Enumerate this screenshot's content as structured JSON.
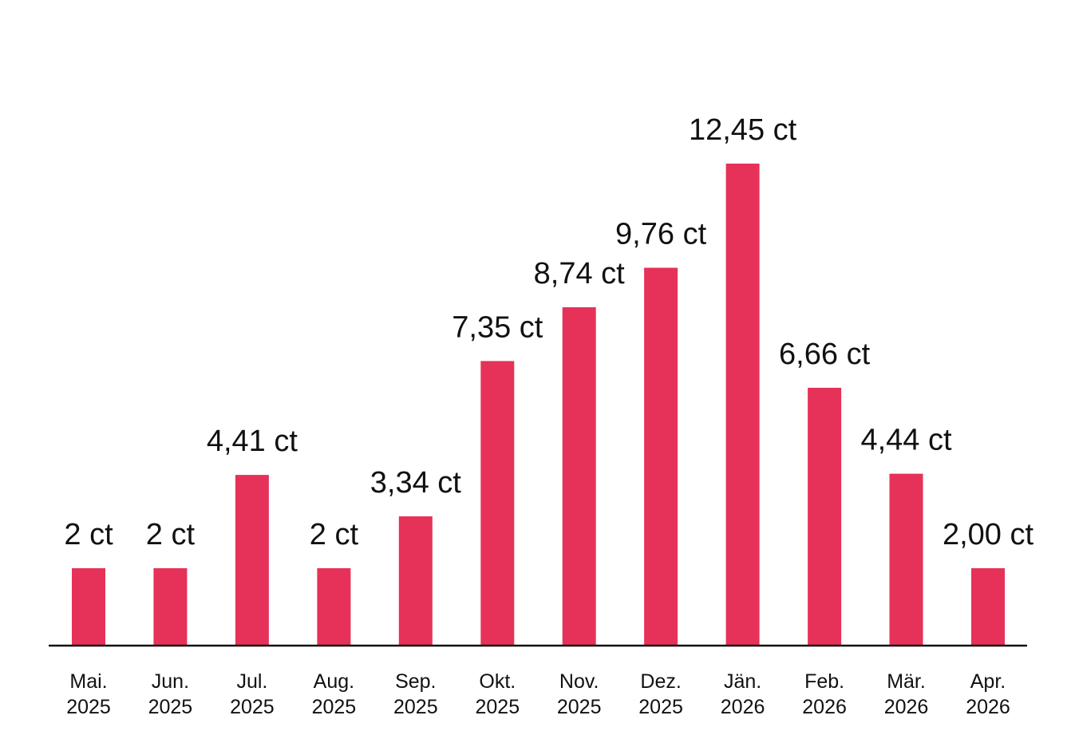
{
  "colors": {
    "bar": "#e63258",
    "axis": "#111111",
    "text": "#111111"
  },
  "chart_data": {
    "type": "bar",
    "categories": [
      [
        "Mai.",
        "2025"
      ],
      [
        "Jun.",
        "2025"
      ],
      [
        "Jul.",
        "2025"
      ],
      [
        "Aug.",
        "2025"
      ],
      [
        "Sep.",
        "2025"
      ],
      [
        "Okt.",
        "2025"
      ],
      [
        "Nov.",
        "2025"
      ],
      [
        "Dez.",
        "2025"
      ],
      [
        "Jän.",
        "2026"
      ],
      [
        "Feb.",
        "2026"
      ],
      [
        "Mär.",
        "2026"
      ],
      [
        "Apr.",
        "2026"
      ]
    ],
    "values": [
      2,
      2,
      4.41,
      2,
      3.34,
      7.35,
      8.74,
      9.76,
      12.45,
      6.66,
      4.44,
      2.0
    ],
    "labels": [
      "2 ct",
      "2 ct",
      "4,41 ct",
      "2 ct",
      "3,34 ct",
      "7,35 ct",
      "8,74 ct",
      "9,76 ct",
      "12,45 ct",
      "6,66 ct",
      "4,44 ct",
      "2,00 ct"
    ],
    "unit": "ct",
    "ylim": [
      0,
      12.45
    ],
    "grid": false,
    "legend": "none"
  }
}
